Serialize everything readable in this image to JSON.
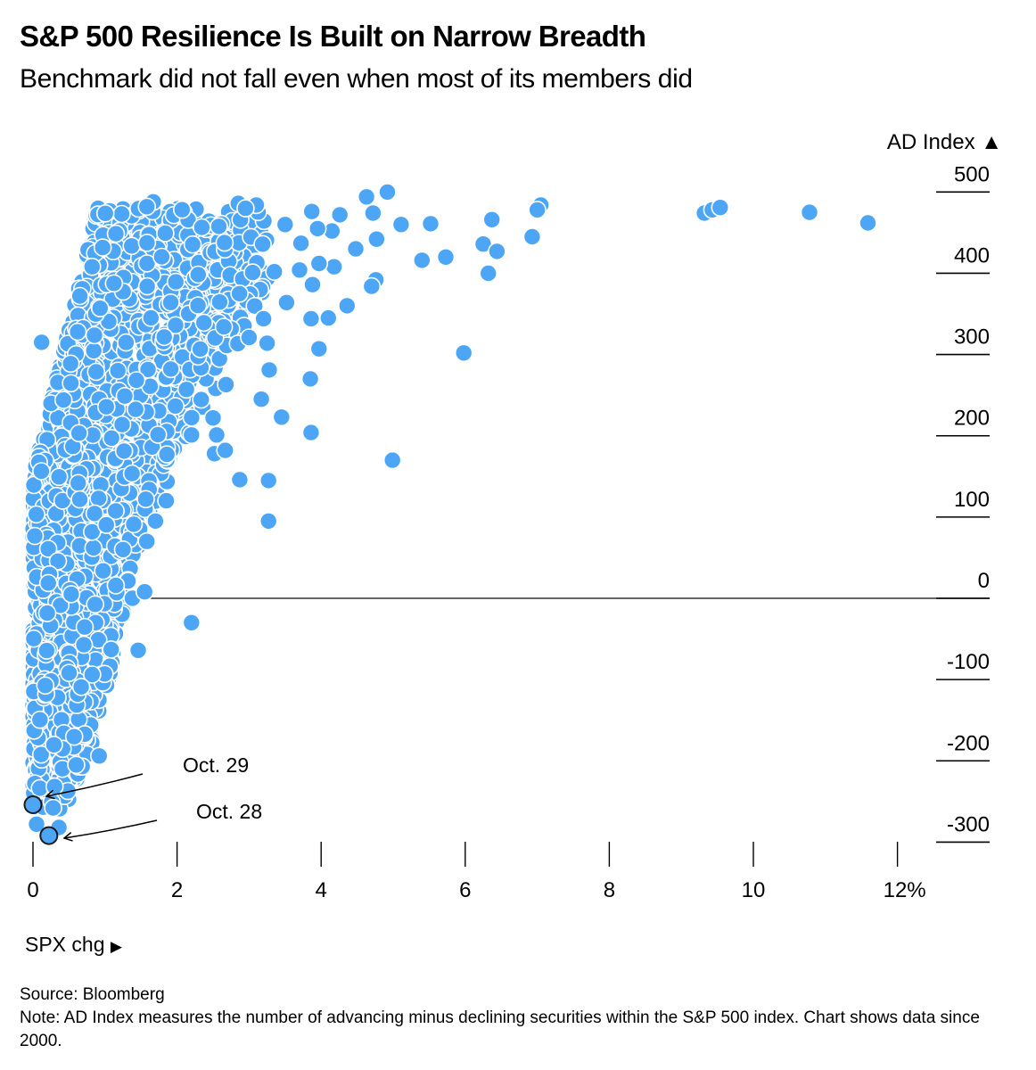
{
  "header": {
    "title": "S&P 500 Resilience Is Built on Narrow Breadth",
    "subtitle": "Benchmark did not fall even when most of its members did"
  },
  "footer": {
    "source": "Source: Bloomberg",
    "note": "Note: AD Index measures the number of advancing minus declining securities within the S&P 500 index. Chart shows data since 2000."
  },
  "colors": {
    "point_fill": "#4DA6F5",
    "point_stroke": "#ffffff",
    "highlight_stroke": "#1a1a1a",
    "axis": "#000000"
  },
  "chart_data": {
    "type": "scatter",
    "title": "S&P 500 Resilience Is Built on Narrow Breadth",
    "subtitle": "Benchmark did not fall even when most of its members did",
    "xlabel": "SPX chg",
    "xlabel_arrow": "▶",
    "ylabel": "AD Index",
    "ylabel_arrow": "▲",
    "xlim": [
      0,
      12.3
    ],
    "ylim": [
      -340,
      520
    ],
    "x_ticks": [
      0,
      2,
      4,
      6,
      8,
      10,
      12
    ],
    "x_tick_labels": [
      "0",
      "2",
      "4",
      "6",
      "8",
      "10",
      "12%"
    ],
    "y_ticks": [
      500,
      400,
      300,
      200,
      100,
      0,
      -100,
      -200,
      -300
    ],
    "y_tick_labels": [
      "500",
      "400",
      "300",
      "200",
      "100",
      "0",
      "-100",
      "-200",
      "-300"
    ],
    "y_axis_side": "right",
    "zero_line": true,
    "grid": false,
    "legend": "none",
    "cloud": {
      "description": "Dense cluster of daily observations since 2000 (positive SPX days)",
      "count": 2100,
      "seed": 7,
      "envelope": [
        {
          "y": -280,
          "xmax": 0.35
        },
        {
          "y": -200,
          "xmax": 0.75
        },
        {
          "y": -100,
          "xmax": 1.05
        },
        {
          "y": 0,
          "xmax": 1.3
        },
        {
          "y": 100,
          "xmax": 1.6
        },
        {
          "y": 200,
          "xmax": 2.2
        },
        {
          "y": 300,
          "xmax": 2.8
        },
        {
          "y": 400,
          "xmax": 3.3
        },
        {
          "y": 470,
          "xmax": 3.2
        }
      ],
      "ymin": -260,
      "ymax": 480
    },
    "points": [
      {
        "x": 1.67,
        "y": 488
      },
      {
        "x": 1.58,
        "y": 482
      },
      {
        "x": 2.85,
        "y": 486
      },
      {
        "x": 3.1,
        "y": 484
      },
      {
        "x": 2.95,
        "y": 480
      },
      {
        "x": 4.63,
        "y": 494
      },
      {
        "x": 4.92,
        "y": 500
      },
      {
        "x": 4.72,
        "y": 474
      },
      {
        "x": 5.11,
        "y": 460
      },
      {
        "x": 5.52,
        "y": 461
      },
      {
        "x": 6.37,
        "y": 466
      },
      {
        "x": 7.05,
        "y": 484
      },
      {
        "x": 7.0,
        "y": 478
      },
      {
        "x": 6.93,
        "y": 445
      },
      {
        "x": 9.32,
        "y": 474
      },
      {
        "x": 9.43,
        "y": 478
      },
      {
        "x": 9.54,
        "y": 481
      },
      {
        "x": 10.78,
        "y": 475
      },
      {
        "x": 11.59,
        "y": 462
      },
      {
        "x": 4.48,
        "y": 430
      },
      {
        "x": 4.77,
        "y": 442
      },
      {
        "x": 4.26,
        "y": 472
      },
      {
        "x": 3.87,
        "y": 476
      },
      {
        "x": 4.15,
        "y": 452
      },
      {
        "x": 3.5,
        "y": 460
      },
      {
        "x": 3.72,
        "y": 437
      },
      {
        "x": 3.95,
        "y": 455
      },
      {
        "x": 6.25,
        "y": 436
      },
      {
        "x": 6.44,
        "y": 427
      },
      {
        "x": 5.73,
        "y": 420
      },
      {
        "x": 5.4,
        "y": 416
      },
      {
        "x": 6.32,
        "y": 400
      },
      {
        "x": 4.76,
        "y": 392
      },
      {
        "x": 4.7,
        "y": 384
      },
      {
        "x": 4.18,
        "y": 408
      },
      {
        "x": 3.97,
        "y": 412
      },
      {
        "x": 3.7,
        "y": 404
      },
      {
        "x": 3.35,
        "y": 402
      },
      {
        "x": 3.05,
        "y": 401
      },
      {
        "x": 3.88,
        "y": 386
      },
      {
        "x": 3.52,
        "y": 364
      },
      {
        "x": 4.36,
        "y": 360
      },
      {
        "x": 3.86,
        "y": 344
      },
      {
        "x": 3.2,
        "y": 344
      },
      {
        "x": 4.1,
        "y": 345
      },
      {
        "x": 3.25,
        "y": 314
      },
      {
        "x": 3.97,
        "y": 307
      },
      {
        "x": 3.0,
        "y": 321
      },
      {
        "x": 2.65,
        "y": 334
      },
      {
        "x": 5.98,
        "y": 302
      },
      {
        "x": 3.28,
        "y": 281
      },
      {
        "x": 3.85,
        "y": 270
      },
      {
        "x": 2.68,
        "y": 263
      },
      {
        "x": 3.17,
        "y": 245
      },
      {
        "x": 3.45,
        "y": 223
      },
      {
        "x": 3.86,
        "y": 204
      },
      {
        "x": 2.5,
        "y": 222
      },
      {
        "x": 2.2,
        "y": 201
      },
      {
        "x": 2.55,
        "y": 201
      },
      {
        "x": 2.52,
        "y": 178
      },
      {
        "x": 2.67,
        "y": 182
      },
      {
        "x": 4.99,
        "y": 170
      },
      {
        "x": 2.87,
        "y": 146
      },
      {
        "x": 3.27,
        "y": 145
      },
      {
        "x": 3.27,
        "y": 95
      },
      {
        "x": 2.2,
        "y": -30
      },
      {
        "x": 1.46,
        "y": -64
      },
      {
        "x": 1.38,
        "y": 0
      },
      {
        "x": 1.55,
        "y": 8
      },
      {
        "x": 1.25,
        "y": 60
      },
      {
        "x": 1.58,
        "y": 70
      },
      {
        "x": 1.7,
        "y": 95
      },
      {
        "x": 1.85,
        "y": 120
      },
      {
        "x": 0.12,
        "y": 315
      },
      {
        "x": 0.62,
        "y": 328
      },
      {
        "x": 0.82,
        "y": 408
      },
      {
        "x": 0.6,
        "y": -205
      },
      {
        "x": 0.92,
        "y": -194
      },
      {
        "x": 0.28,
        "y": -258
      },
      {
        "x": 0.36,
        "y": -282
      },
      {
        "x": 0.05,
        "y": -278
      }
    ],
    "highlighted": [
      {
        "label": "Oct. 29",
        "x": 0.0,
        "y": -254
      },
      {
        "label": "Oct. 28",
        "x": 0.22,
        "y": -292
      }
    ]
  }
}
